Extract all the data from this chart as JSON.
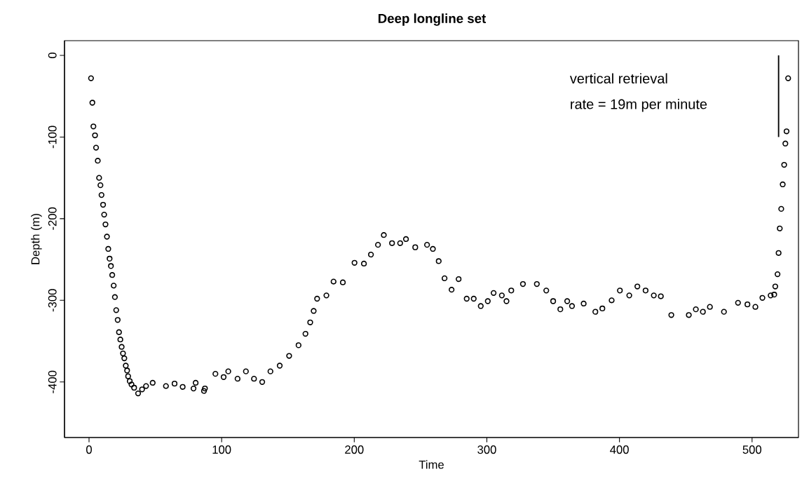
{
  "chart_data": {
    "type": "scatter",
    "title": "Deep longline set",
    "xlabel": "Time",
    "ylabel": "Depth (m)",
    "xlim": [
      -18.5,
      535
    ],
    "ylim": [
      -468,
      18
    ],
    "xticks": [
      0,
      100,
      200,
      300,
      400,
      500
    ],
    "yticks": [
      0,
      -100,
      -200,
      -300,
      -400
    ],
    "grid": false,
    "legend": false,
    "marker": "circle",
    "annotations": [
      "vertical retrieval",
      "rate = 19m per minute"
    ],
    "series": [
      {
        "color": "#000000",
        "x": [
          1.5,
          2.5,
          3.3,
          4.5,
          5.3,
          6.6,
          7.6,
          8.6,
          9.4,
          10.6,
          11.4,
          12.4,
          13.5,
          14.5,
          15.5,
          16.5,
          17.5,
          18.6,
          19.5,
          20.5,
          21.6,
          22.6,
          23.6,
          24.6,
          25.6,
          26.6,
          27.7,
          28.7,
          29.5,
          30.7,
          32,
          34,
          37,
          40,
          43,
          48,
          58,
          64.5,
          70.6,
          78.8,
          80.4,
          86.7,
          87.4,
          95.3,
          101.5,
          105,
          112,
          118.3,
          124.4,
          130.6,
          136.8,
          143.8,
          150.9,
          158,
          163.2,
          166.8,
          169.4,
          172,
          179,
          184.4,
          191.4,
          200.2,
          207.3,
          212.6,
          217.9,
          222.3,
          228.5,
          234.6,
          239,
          246,
          254.9,
          259.3,
          263.7,
          268.1,
          273.4,
          278.7,
          284.8,
          290.1,
          295.4,
          300.7,
          305.1,
          311.3,
          314.8,
          318.4,
          327.2,
          337.7,
          344.8,
          350,
          355.4,
          360.6,
          364.2,
          373,
          381.8,
          387.1,
          394.1,
          400.3,
          407.4,
          413.5,
          419.7,
          425.9,
          431.2,
          439.1,
          452.3,
          457.6,
          462.9,
          468.2,
          478.8,
          489.4,
          496.5,
          502.5,
          507.8,
          514,
          516.7,
          517.5,
          519.2,
          520,
          520.9,
          522,
          523.1,
          524.2,
          525.1,
          526,
          527.2
        ],
        "values": [
          -28,
          -58,
          -87,
          -98,
          -113,
          -129,
          -150,
          -159,
          -171,
          -183,
          -195,
          -207,
          -222,
          -237,
          -249,
          -258,
          -269,
          -282,
          -296,
          -312,
          -324,
          -339,
          -348,
          -357,
          -365,
          -371,
          -380,
          -386,
          -393,
          -399,
          -403,
          -407,
          -414,
          -409,
          -405,
          -401,
          -405,
          -402,
          -406,
          -408,
          -401,
          -411,
          -408,
          -390,
          -394,
          -387,
          -396,
          -387,
          -396,
          -400,
          -387,
          -380,
          -368,
          -355,
          -341,
          -327,
          -313,
          -298,
          -294,
          -277,
          -278,
          -254,
          -255,
          -244,
          -232,
          -220,
          -230,
          -230,
          -225,
          -235,
          -232,
          -237,
          -252,
          -273,
          -287,
          -274,
          -298,
          -298,
          -307,
          -301,
          -291,
          -294,
          -301,
          -288,
          -280,
          -280,
          -288,
          -301,
          -311,
          -301,
          -307,
          -304,
          -314,
          -310,
          -300,
          -288,
          -294,
          -283,
          -288,
          -294,
          -295,
          -318,
          -318,
          -311,
          -314,
          -308,
          -314,
          -303,
          -305,
          -308,
          -297,
          -294,
          -293,
          -283,
          -268,
          -242,
          -212,
          -188,
          -158,
          -134,
          -108,
          -93,
          -28
        ]
      },
      {
        "type": "line",
        "color": "#000000",
        "marker": "none",
        "x": [
          520,
          520
        ],
        "values": [
          0,
          -100
        ]
      }
    ]
  }
}
